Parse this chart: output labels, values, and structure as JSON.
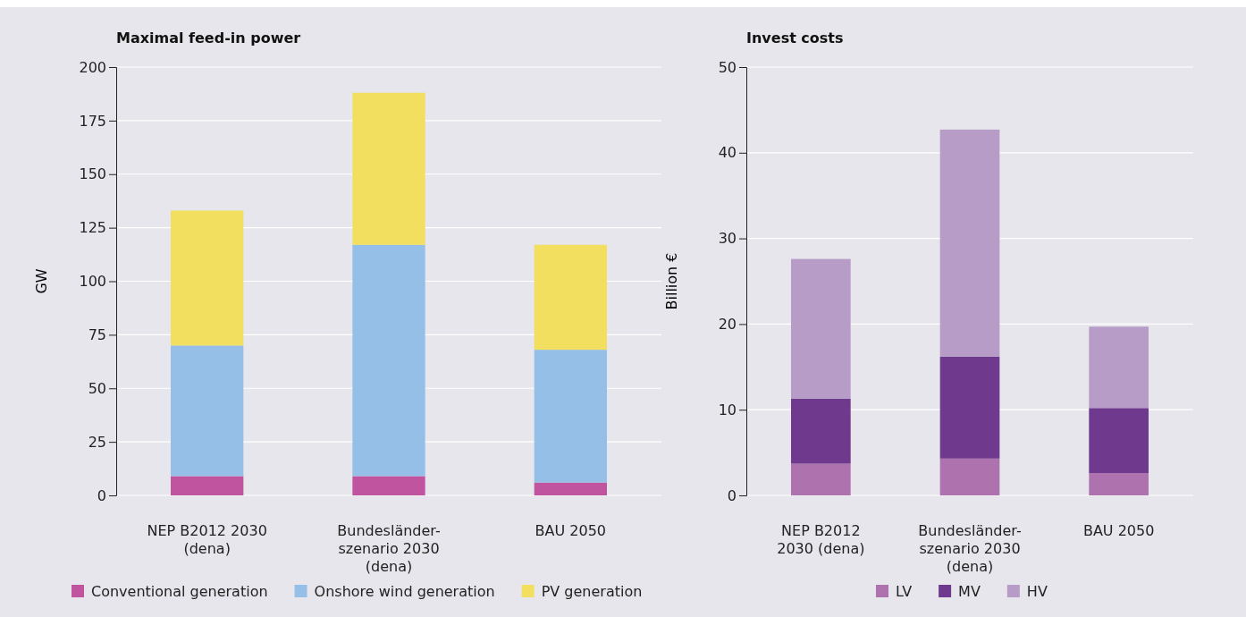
{
  "chart_data": [
    {
      "type": "bar",
      "title": "Maximal feed-in power",
      "ylabel": "GW",
      "categories": [
        "NEP B2012 2030 (dena)",
        "Bundesländer-szenario 2030 (dena)",
        "BAU 2050"
      ],
      "stacked": true,
      "ylim": [
        0,
        200
      ],
      "yticks": [
        0,
        25,
        50,
        75,
        100,
        125,
        150,
        175,
        200
      ],
      "grid": "y",
      "legend": "bottom",
      "series": [
        {
          "name": "Conventional generation",
          "color": "#c0549e",
          "values": [
            9,
            9,
            6
          ]
        },
        {
          "name": "Onshore wind generation",
          "color": "#96bfe8",
          "values": [
            61,
            108,
            62
          ]
        },
        {
          "name": "PV generation",
          "color": "#f2df5f",
          "values": [
            63,
            71,
            49
          ]
        }
      ]
    },
    {
      "type": "bar",
      "title": "Invest costs",
      "ylabel": "Billion €",
      "categories": [
        "NEP B2012 2030 (dena)",
        "Bundesländer-szenario 2030 (dena)",
        "BAU 2050"
      ],
      "stacked": true,
      "ylim": [
        0,
        50
      ],
      "yticks": [
        0,
        10,
        20,
        30,
        40,
        50
      ],
      "grid": "y",
      "legend": "bottom",
      "series": [
        {
          "name": "LV",
          "color": "#ae72ae",
          "values": [
            3.7,
            4.3,
            2.6
          ]
        },
        {
          "name": "MV",
          "color": "#6f3a8e",
          "values": [
            7.6,
            11.9,
            7.6
          ]
        },
        {
          "name": "HV",
          "color": "#b69cc6",
          "values": [
            16.3,
            26.5,
            9.5
          ]
        }
      ]
    }
  ]
}
